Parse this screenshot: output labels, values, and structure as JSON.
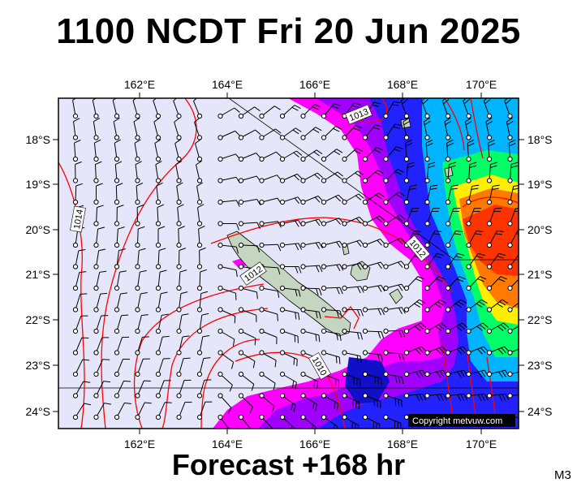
{
  "title": "1100 NCDT Fri 20 Jun 2025",
  "footer": "Forecast +168 hr",
  "model": "M3",
  "copyright": "Copyright metvuw.com",
  "longitudes": [
    "162°E",
    "164°E",
    "166°E",
    "168°E",
    "170°E"
  ],
  "latitudes": [
    "18°S",
    "19°S",
    "20°S",
    "21°S",
    "22°S",
    "23°S",
    "24°S"
  ],
  "isobar_labels": [
    "1014",
    "1013",
    "1012",
    "1012",
    "1010"
  ],
  "colors": {
    "background": "#e6e6fa",
    "isobar": "#ff0000",
    "land": "#c4d6c0",
    "rain_magenta": "#ff00ff",
    "rain_purple": "#9900ff",
    "rain_blue": "#2222ff",
    "rain_cyan": "#00c8ff",
    "rain_green": "#00ff66",
    "rain_yellow": "#ffee00",
    "rain_orange": "#ff7700",
    "rain_red": "#ff3300"
  }
}
